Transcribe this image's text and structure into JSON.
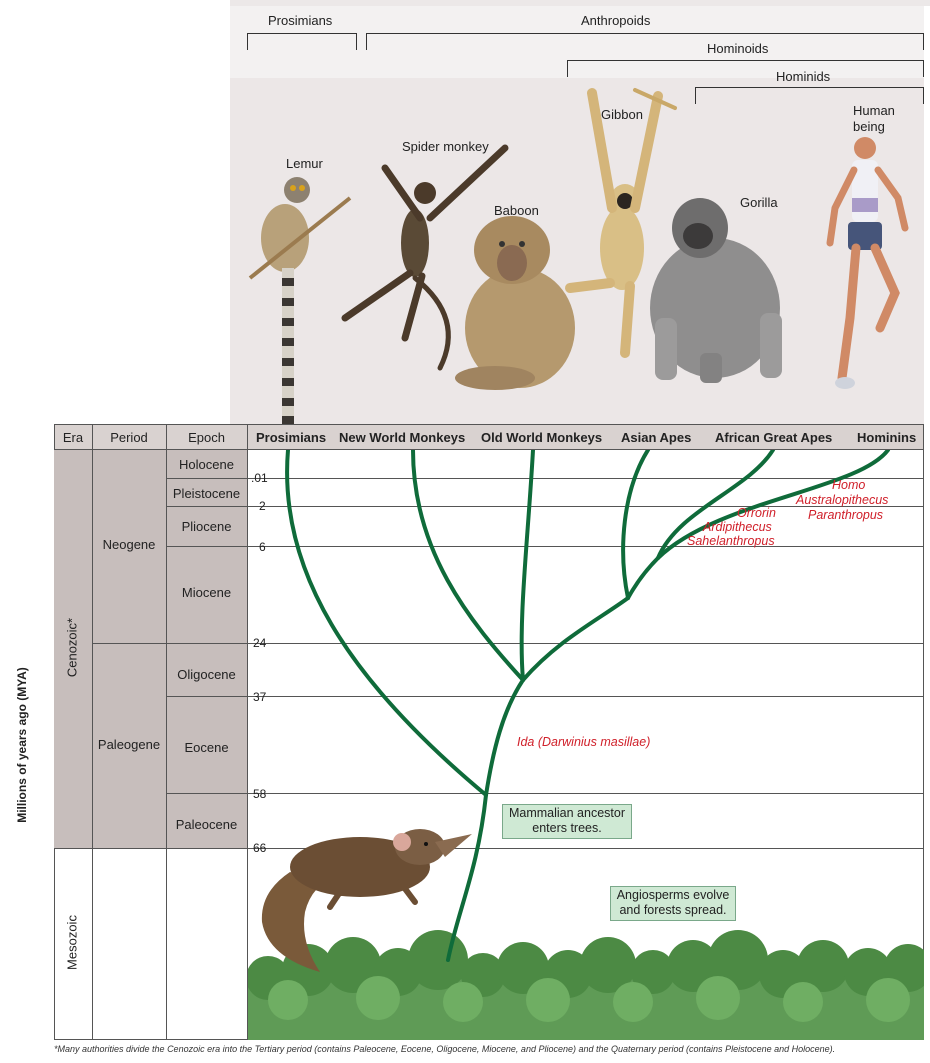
{
  "brackets": {
    "prosimians": "Prosimians",
    "anthropoids": "Anthropoids",
    "hominoids": "Hominoids",
    "hominids": "Hominids"
  },
  "animals": {
    "lemur": "Lemur",
    "spider_monkey": "Spider monkey",
    "baboon": "Baboon",
    "gibbon": "Gibbon",
    "gorilla": "Gorilla",
    "human_line1": "Human",
    "human_line2": "being"
  },
  "table_headers": {
    "era": "Era",
    "period": "Period",
    "epoch": "Epoch"
  },
  "groups": [
    "Prosimians",
    "New World Monkeys",
    "Old World Monkeys",
    "Asian Apes",
    "African Great Apes",
    "Hominins"
  ],
  "eras": {
    "cenozoic": "Cenozoic*",
    "mesozoic": "Mesozoic"
  },
  "periods": {
    "neogene": "Neogene",
    "paleogene": "Paleogene"
  },
  "epochs": [
    "Holocene",
    "Pleistocene",
    "Pliocene",
    "Miocene",
    "Oligocene",
    "Eocene",
    "Paleocene"
  ],
  "ticks": [
    ".01",
    "2",
    "6",
    "24",
    "37",
    "58",
    "66"
  ],
  "y_axis_label": "Millions of years ago (MYA)",
  "genera": {
    "hominin_upper": [
      "Homo",
      "Australopithecus",
      "Paranthropus"
    ],
    "hominin_lower": [
      "Orrorin",
      "Ardipithecus",
      "Sahelanthropus"
    ],
    "ida": "Ida (Darwinius masillae)"
  },
  "notes": {
    "trees_line1": "Mammalian ancestor",
    "trees_line2": "enters trees.",
    "angio_line1": "Angiosperms evolve",
    "angio_line2": "and forests spread."
  },
  "footnote": "*Many authorities divide the Cenozoic era into the Tertiary period (contains Paleocene, Eocene, Oligocene, Miocene, and Pliocene) and the Quaternary period (contains Pleistocene and Holocene).",
  "colors": {
    "branch": "#0f6b3a",
    "genus": "#d0202a",
    "table_fill": "#c7bebc",
    "note_fill": "#cfe9d4"
  }
}
